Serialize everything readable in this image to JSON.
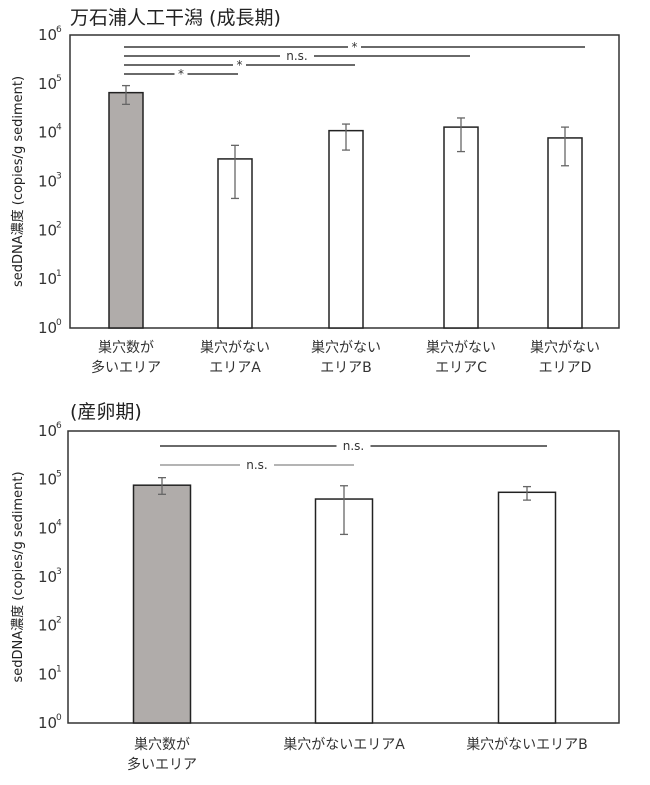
{
  "chart_data": [
    {
      "type": "bar",
      "title": "万石浦人工干潟 (成長期)",
      "ylabel": "sedDNA濃度 (copies/g sediment)",
      "xlabel": "",
      "yscale": "log",
      "ylim": [
        1,
        1000000
      ],
      "yticks": [
        "10^0",
        "10^1",
        "10^2",
        "10^3",
        "10^4",
        "10^5",
        "10^6"
      ],
      "categories": [
        "巣穴数が\n多いエリア",
        "巣穴がない\nエリアA",
        "巣穴がない\nエリアB",
        "巣穴がない\nエリアC",
        "巣穴がない\nエリアD"
      ],
      "values": [
        66000,
        2900,
        11000,
        13000,
        7800
      ],
      "error_low": [
        38000,
        450,
        4400,
        4100,
        2100
      ],
      "error_high": [
        92000,
        5500,
        15000,
        20000,
        13000
      ],
      "colors": [
        "#b0acaa",
        "#ffffff",
        "#ffffff",
        "#ffffff",
        "#ffffff"
      ],
      "comparisons": [
        {
          "from": 0,
          "to": 4,
          "label": "*"
        },
        {
          "from": 0,
          "to": 3,
          "label": "n.s."
        },
        {
          "from": 0,
          "to": 2,
          "label": "*"
        },
        {
          "from": 0,
          "to": 1,
          "label": "*"
        }
      ],
      "grid": false,
      "legend": null
    },
    {
      "type": "bar",
      "title": "(産卵期)",
      "ylabel": "sedDNA濃度 (copies/g sediment)",
      "xlabel": "",
      "yscale": "log",
      "ylim": [
        1,
        1000000
      ],
      "yticks": [
        "10^0",
        "10^1",
        "10^2",
        "10^3",
        "10^4",
        "10^5",
        "10^6"
      ],
      "categories": [
        "巣穴数が\n多いエリア",
        "巣穴がないエリアA",
        "巣穴がないエリアB"
      ],
      "values": [
        77000,
        40000,
        55000
      ],
      "error_low": [
        50000,
        7500,
        38000
      ],
      "error_high": [
        110000,
        75000,
        72000
      ],
      "colors": [
        "#b0acaa",
        "#ffffff",
        "#ffffff"
      ],
      "comparisons": [
        {
          "from": 0,
          "to": 2,
          "label": "n.s."
        },
        {
          "from": 0,
          "to": 1,
          "label": "n.s."
        }
      ],
      "grid": false,
      "legend": null
    }
  ],
  "charts": {
    "top": {
      "title": "万石浦人工干潟 (成長期)",
      "ylabel": "sedDNA濃度 (copies/g sediment)"
    },
    "bottom": {
      "title": "(産卵期)",
      "ylabel": "sedDNA濃度 (copies/g sediment)"
    }
  }
}
